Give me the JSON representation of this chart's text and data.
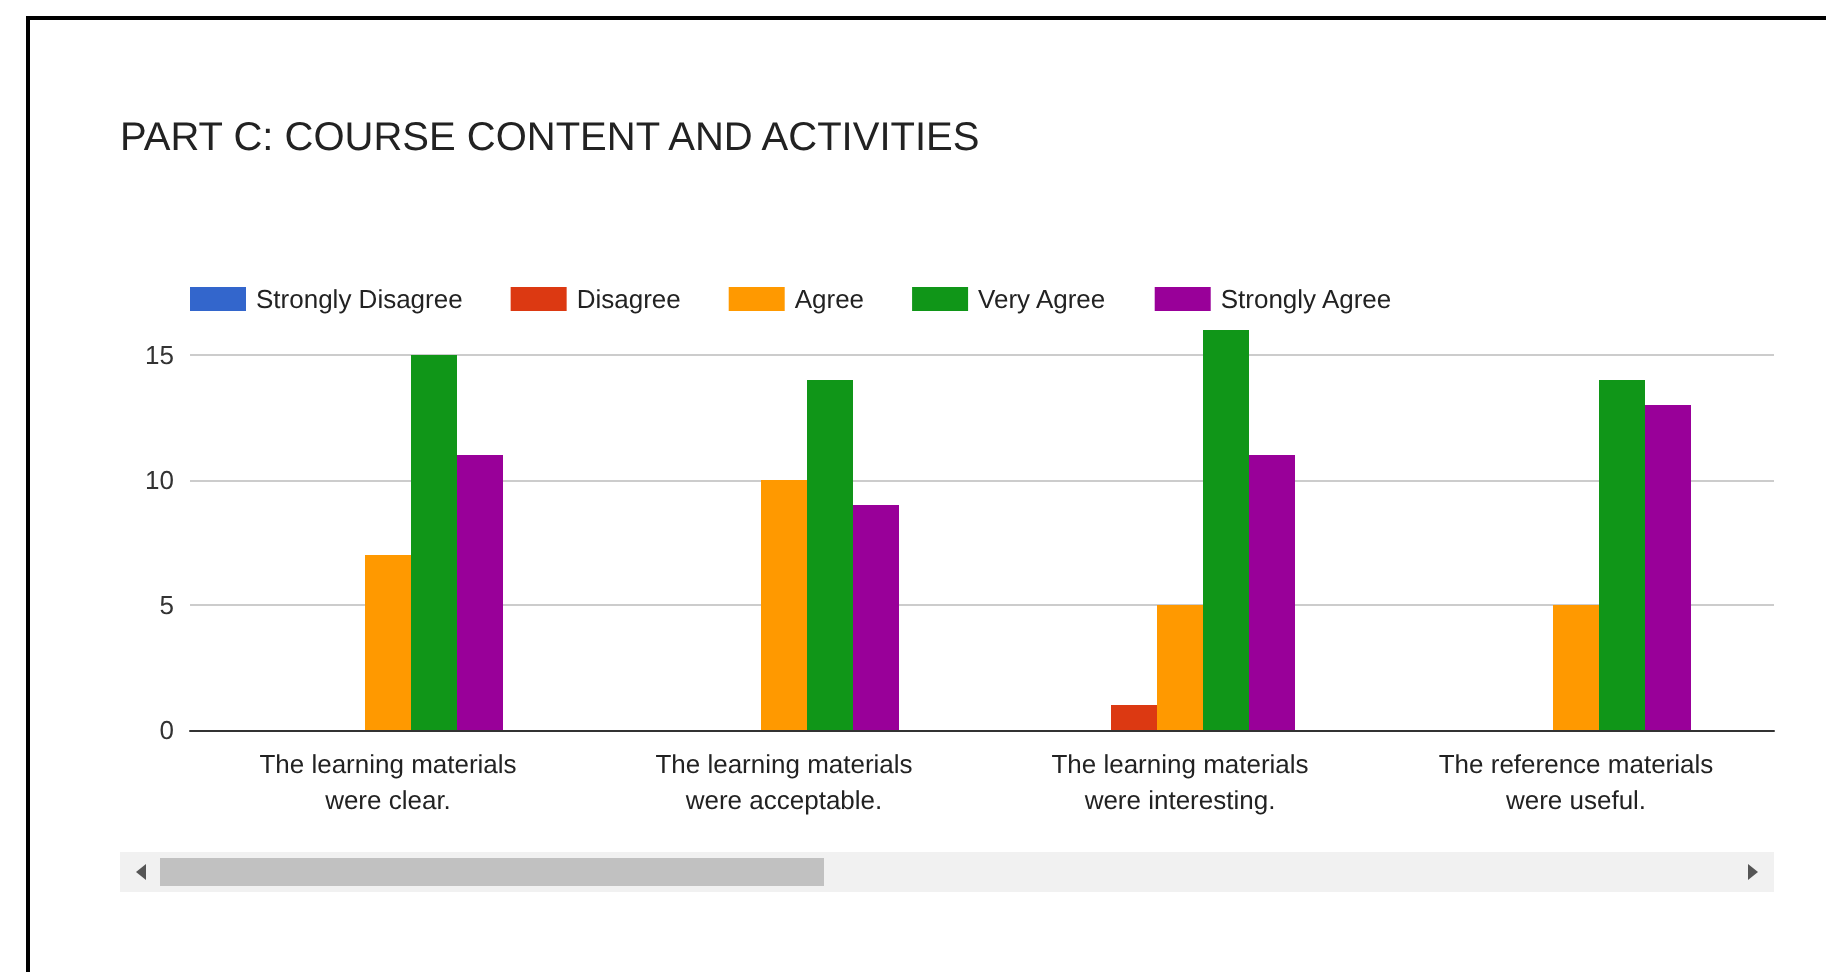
{
  "chart_data": {
    "type": "bar",
    "title": "PART C: COURSE CONTENT AND ACTIVITIES",
    "categories": [
      "The learning materials\nwere clear.",
      "The learning materials\nwere acceptable.",
      "The learning materials\nwere interesting.",
      "The reference materials\nwere useful."
    ],
    "series": [
      {
        "name": "Strongly Disagree",
        "color": "#3366cc",
        "values": [
          0,
          0,
          0,
          0
        ]
      },
      {
        "name": "Disagree",
        "color": "#dc3912",
        "values": [
          0,
          0,
          1,
          0
        ]
      },
      {
        "name": "Agree",
        "color": "#ff9900",
        "values": [
          7,
          10,
          5,
          5
        ]
      },
      {
        "name": "Very Agree",
        "color": "#109618",
        "values": [
          15,
          14,
          16,
          14
        ]
      },
      {
        "name": "Strongly Agree",
        "color": "#990099",
        "values": [
          11,
          9,
          11,
          13
        ]
      }
    ],
    "ylim": [
      0,
      16
    ],
    "yticks": [
      0,
      5,
      10,
      15
    ],
    "grid": "y",
    "legend": "top left"
  }
}
